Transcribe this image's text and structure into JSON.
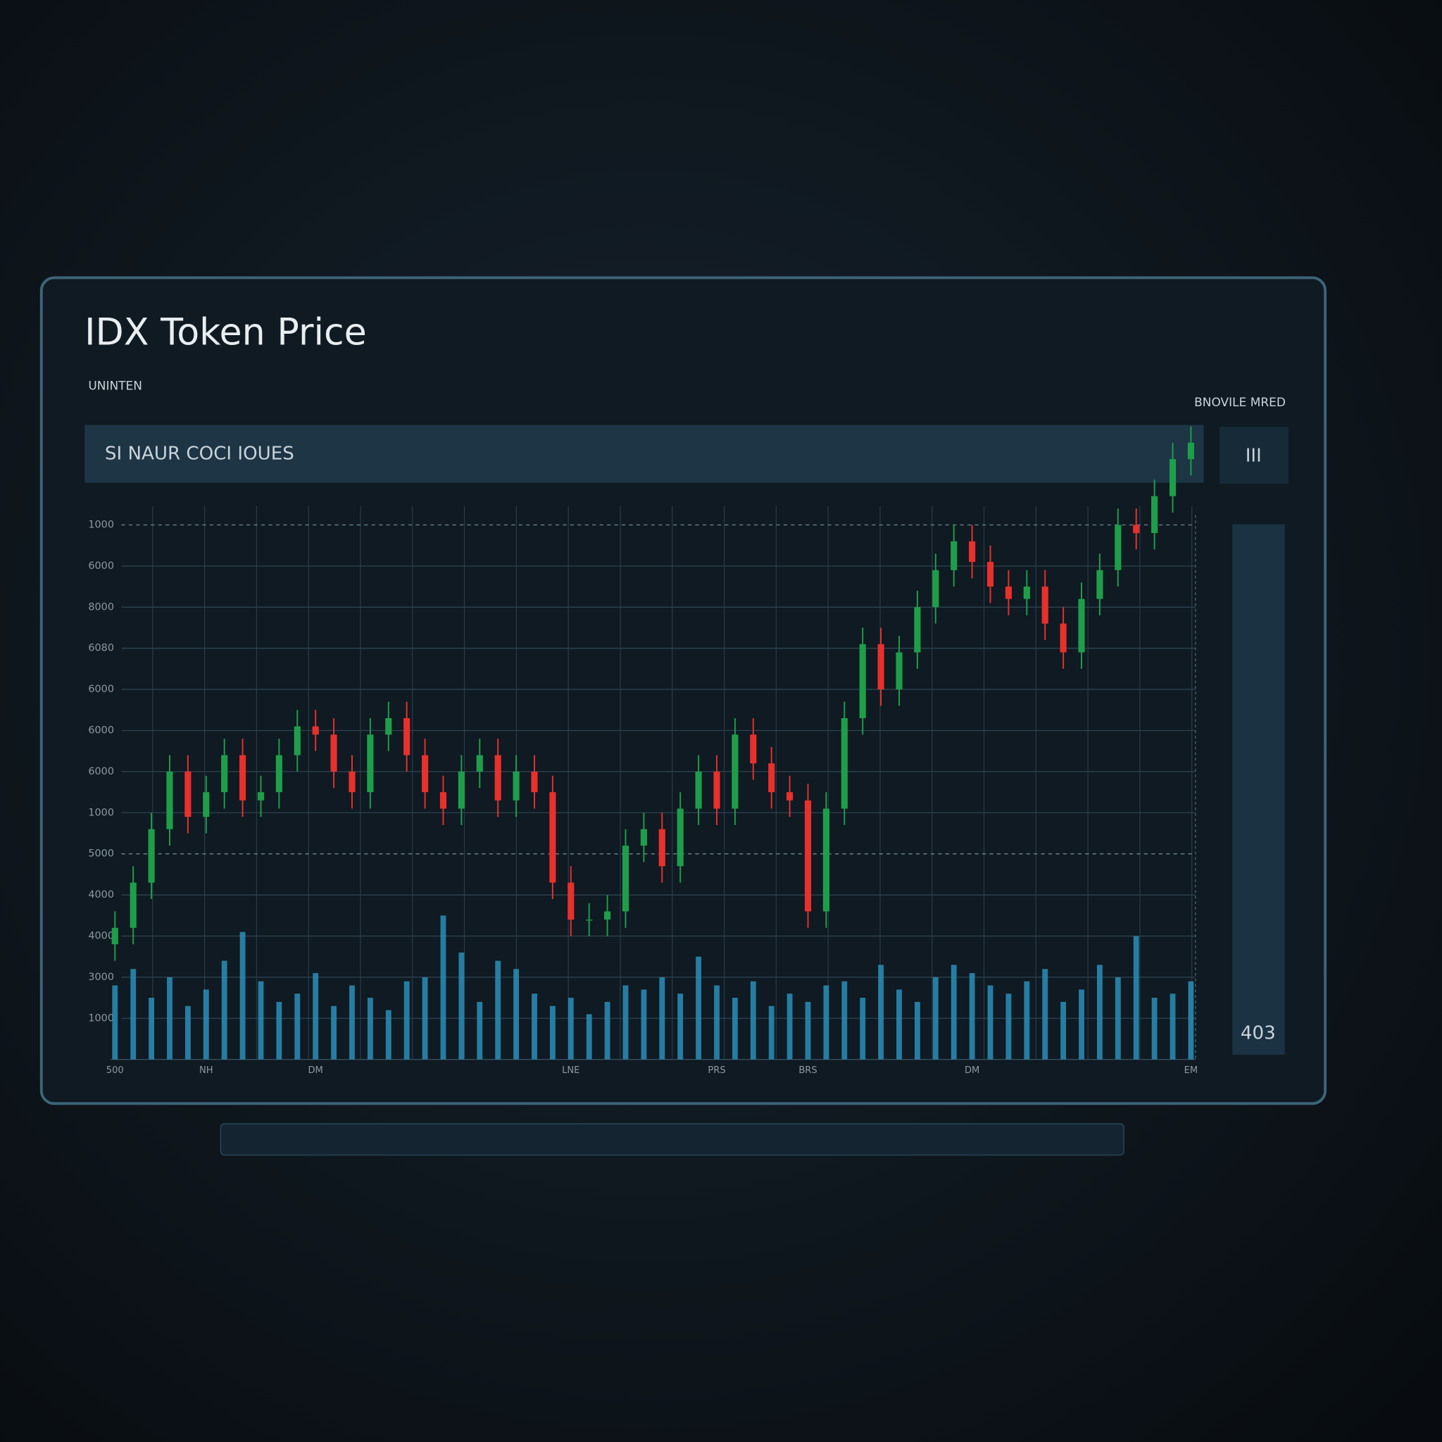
{
  "chart_data": {
    "type": "candlestick",
    "title": "IDX Token Price",
    "subtitle": "UNINTEN",
    "range_label": "BNOVILE MRED",
    "search_text": "SI NAUR COCI IOUES",
    "button_label": "III",
    "panel_value": "403",
    "categories": [
      "500",
      null,
      null,
      null,
      null,
      "NH",
      null,
      null,
      null,
      null,
      null,
      "DM",
      null,
      null,
      null,
      null,
      null,
      null,
      null,
      null,
      null,
      null,
      null,
      null,
      null,
      "LNE",
      null,
      null,
      null,
      null,
      null,
      null,
      null,
      "PRS",
      null,
      null,
      null,
      null,
      "BRS",
      null,
      null,
      null,
      null,
      null,
      null,
      null,
      null,
      "DM",
      null,
      null,
      null,
      null,
      null,
      null,
      null,
      null,
      null,
      null,
      null,
      "EM"
    ],
    "open": [
      2.8,
      3.2,
      4.3,
      5.6,
      7.0,
      5.9,
      6.5,
      7.4,
      6.3,
      6.5,
      7.4,
      8.1,
      7.9,
      7.0,
      6.5,
      7.9,
      8.3,
      7.4,
      6.5,
      6.1,
      7.0,
      7.4,
      6.3,
      7.0,
      6.5,
      4.3,
      3.4,
      3.4,
      3.6,
      5.2,
      5.6,
      4.7,
      6.1,
      7.0,
      6.1,
      7.9,
      7.2,
      6.5,
      6.3,
      3.6,
      6.1,
      8.3,
      10.1,
      9.0,
      9.9,
      11.0,
      11.9,
      12.6,
      12.1,
      11.5,
      11.2,
      11.5,
      10.6,
      9.9,
      11.2,
      11.9,
      13.0,
      12.8,
      13.7,
      14.6
    ],
    "high": [
      3.6,
      4.7,
      6.0,
      7.4,
      7.4,
      6.9,
      7.8,
      7.8,
      6.9,
      7.8,
      8.5,
      8.5,
      8.3,
      7.4,
      8.3,
      8.7,
      8.7,
      7.8,
      6.9,
      7.4,
      7.8,
      7.8,
      7.4,
      7.4,
      6.9,
      4.7,
      3.8,
      4.0,
      5.6,
      6.0,
      6.0,
      6.5,
      7.4,
      7.4,
      8.3,
      8.3,
      7.6,
      6.9,
      6.7,
      6.5,
      8.7,
      10.5,
      10.5,
      10.3,
      11.4,
      12.3,
      13.0,
      13.0,
      12.5,
      11.9,
      11.9,
      11.9,
      11.0,
      11.6,
      12.3,
      13.4,
      13.4,
      14.1,
      15.0,
      15.4
    ],
    "low": [
      2.4,
      2.8,
      3.9,
      5.2,
      5.5,
      5.5,
      6.1,
      5.9,
      5.9,
      6.1,
      7.0,
      7.5,
      6.6,
      6.1,
      6.1,
      7.5,
      7.0,
      6.1,
      5.7,
      5.7,
      6.6,
      5.9,
      5.9,
      6.1,
      3.9,
      3.0,
      3.0,
      3.0,
      3.2,
      4.8,
      4.3,
      4.3,
      5.7,
      5.7,
      5.7,
      6.8,
      6.1,
      5.9,
      3.2,
      3.2,
      5.7,
      7.9,
      8.6,
      8.6,
      9.5,
      10.6,
      11.5,
      11.7,
      11.1,
      10.8,
      10.8,
      10.2,
      9.5,
      9.5,
      10.8,
      11.5,
      12.4,
      12.4,
      13.3,
      14.2
    ],
    "close": [
      3.2,
      4.3,
      5.6,
      7.0,
      5.9,
      6.5,
      7.4,
      6.3,
      6.5,
      7.4,
      8.1,
      7.9,
      7.0,
      6.5,
      7.9,
      8.3,
      7.4,
      6.5,
      6.1,
      7.0,
      7.4,
      6.3,
      7.0,
      6.5,
      4.3,
      3.4,
      3.4,
      3.6,
      5.2,
      5.6,
      4.7,
      6.1,
      7.0,
      6.1,
      7.9,
      7.2,
      6.5,
      6.3,
      3.6,
      6.1,
      8.3,
      10.1,
      9.0,
      9.9,
      11.0,
      11.9,
      12.6,
      12.1,
      11.5,
      11.2,
      11.5,
      10.6,
      9.9,
      11.2,
      11.9,
      13.0,
      12.8,
      13.7,
      14.6,
      15.0
    ],
    "volume": [
      1.8,
      2.2,
      1.5,
      2.0,
      1.3,
      1.7,
      2.4,
      3.1,
      1.9,
      1.4,
      1.6,
      2.1,
      1.3,
      1.8,
      1.5,
      1.2,
      1.9,
      2.0,
      3.5,
      2.6,
      1.4,
      2.4,
      2.2,
      1.6,
      1.3,
      1.5,
      1.1,
      1.4,
      1.8,
      1.7,
      2.0,
      1.6,
      2.5,
      1.8,
      1.5,
      1.9,
      1.3,
      1.6,
      1.4,
      1.8,
      1.9,
      1.5,
      2.3,
      1.7,
      1.4,
      2.0,
      2.3,
      2.1,
      1.8,
      1.6,
      1.9,
      2.2,
      1.4,
      1.7,
      2.3,
      2.0,
      3.0,
      1.5,
      1.6,
      1.9
    ],
    "up_color": "#1f9e4a",
    "down_color": "#e8302c",
    "volume_color": "#2a8fb8",
    "ylim": [
      0,
      13.8
    ],
    "yticks": [
      {
        "value": 13,
        "label": "1000"
      },
      {
        "value": 12,
        "label": "6000"
      },
      {
        "value": 11,
        "label": "8000"
      },
      {
        "value": 10,
        "label": "6080"
      },
      {
        "value": 9,
        "label": "6000"
      },
      {
        "value": 8,
        "label": "6000"
      },
      {
        "value": 7,
        "label": "6000"
      },
      {
        "value": 6,
        "label": "1000"
      },
      {
        "value": 5,
        "label": "5000"
      },
      {
        "value": 4,
        "label": "4000"
      },
      {
        "value": 3,
        "label": "4000"
      },
      {
        "value": 2,
        "label": "3000"
      },
      {
        "value": 1,
        "label": "1000"
      }
    ],
    "grid": true
  }
}
